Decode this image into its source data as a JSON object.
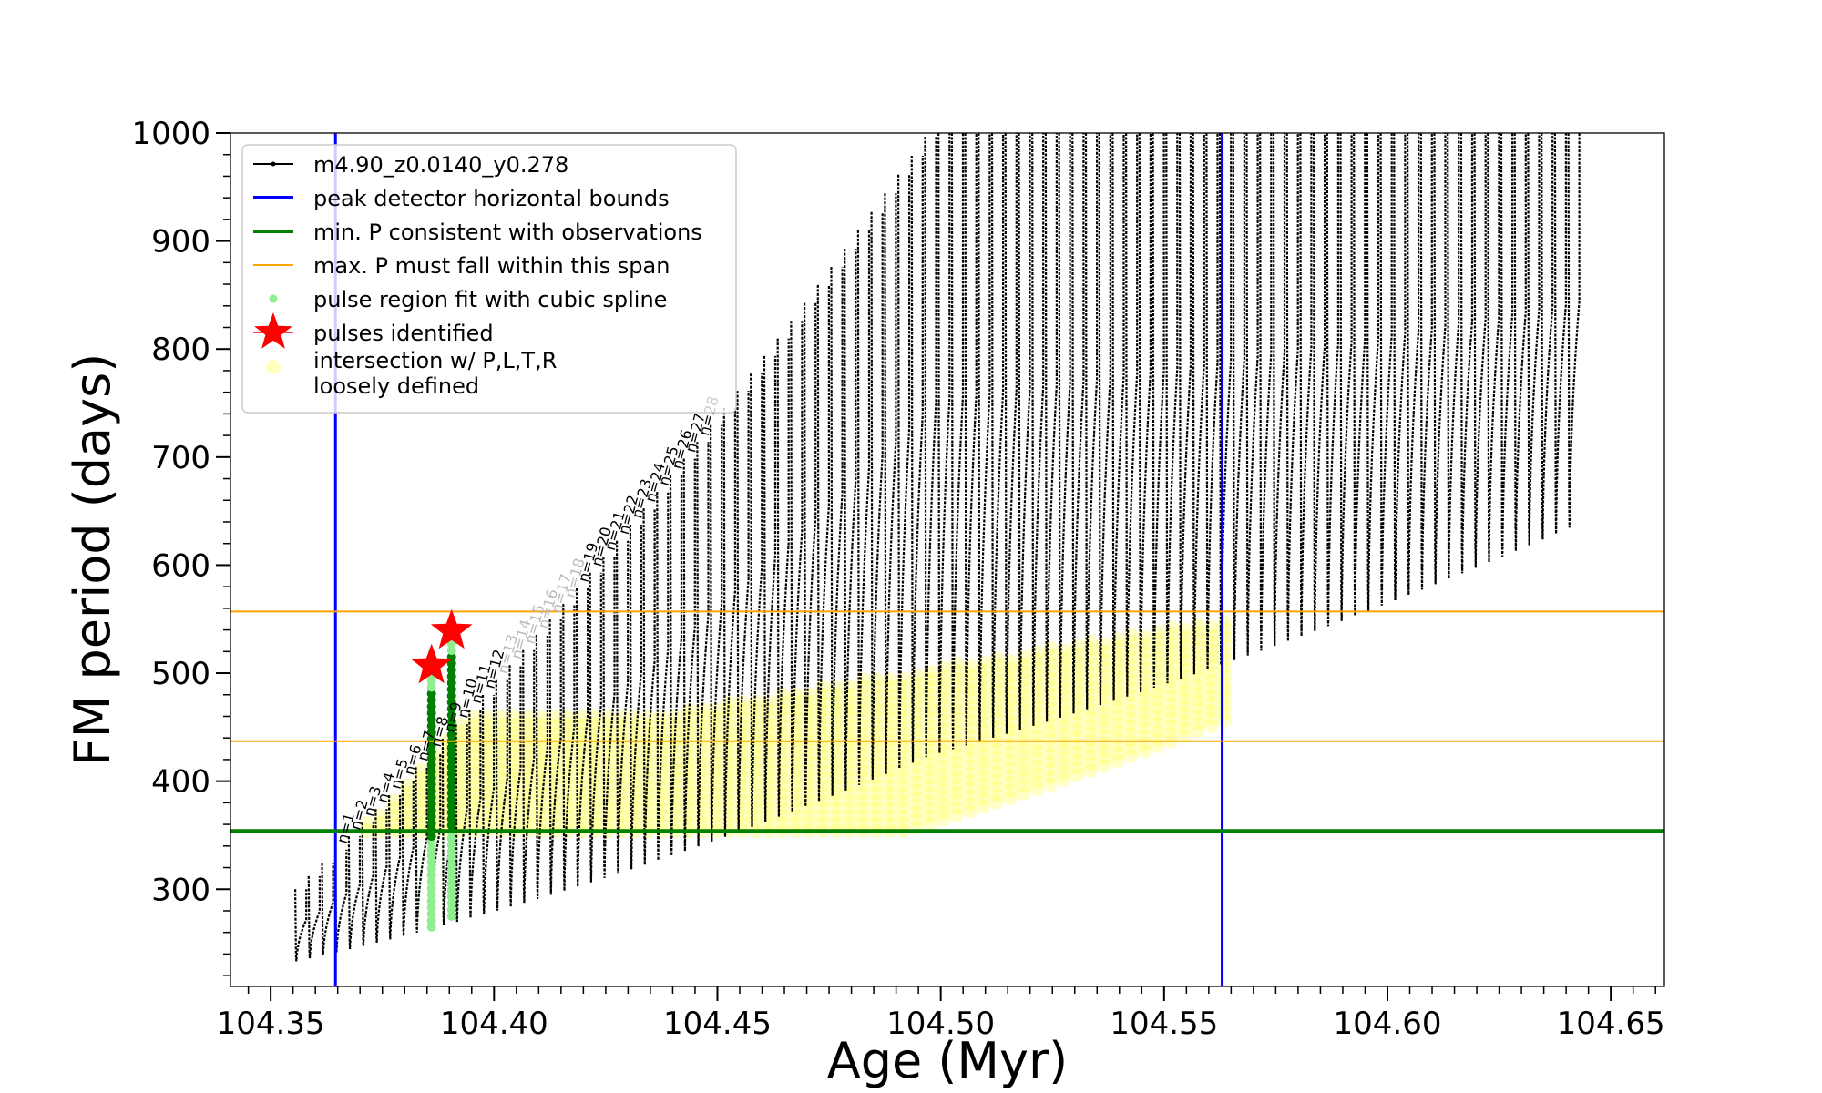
{
  "chart_data": {
    "type": "line",
    "xlabel": "Age (Myr)",
    "ylabel": "FM period (days)",
    "xlim": [
      104.341,
      104.662
    ],
    "ylim": [
      210,
      1000
    ],
    "xticks": [
      "104.35",
      "104.40",
      "104.45",
      "104.50",
      "104.55",
      "104.60",
      "104.65"
    ],
    "yticks": [
      "300",
      "400",
      "500",
      "600",
      "700",
      "800",
      "900",
      "1000"
    ],
    "grid": false,
    "legend_position": "top-left",
    "legend": [
      {
        "label": "m4.90_z0.0140_y0.278",
        "style": "line-marker",
        "color": "#000000"
      },
      {
        "label": "peak detector horizontal bounds",
        "style": "line",
        "color": "#0000ff"
      },
      {
        "label": "min. P consistent with observations",
        "style": "line",
        "color": "#008000"
      },
      {
        "label": "max. P must fall within this span",
        "style": "line",
        "color": "#ffa500"
      },
      {
        "label": "pulse region fit with cubic spline",
        "style": "dot",
        "color": "#90ee90"
      },
      {
        "label": "pulses identified",
        "style": "star",
        "color": "#ff0000"
      },
      {
        "label": "intersection w/ P,L,T,R\nloosely defined",
        "style": "circle",
        "color": "#ffff00"
      }
    ],
    "vertical_lines": [
      {
        "x": 104.3645,
        "color": "#0000ff"
      },
      {
        "x": 104.563,
        "color": "#0000ff"
      }
    ],
    "horizontal_lines": [
      {
        "y": 354,
        "color": "#008000"
      },
      {
        "y": 437,
        "color": "#ffa500"
      },
      {
        "y": 557,
        "color": "#ffa500"
      }
    ],
    "pulse_labels": [
      "n=1",
      "n=2",
      "n=3",
      "n=4",
      "n=5",
      "n=6",
      "n=7",
      "n=8",
      "n=9",
      "n=10",
      "n=11",
      "n=12",
      "n=13",
      "n=14",
      "n=15",
      "n=16",
      "n=17",
      "n=18",
      "n=19",
      "n=20",
      "n=21",
      "n=22",
      "n=23",
      "n=24",
      "n=25",
      "n=26",
      "n=27",
      "n=28"
    ],
    "pulses_identified": [
      {
        "x": 104.386,
        "y": 507
      },
      {
        "x": 104.3905,
        "y": 539
      }
    ],
    "series": [
      {
        "name": "m4.90_z0.0140_y0.278",
        "color": "#000000",
        "pulse_count": 96,
        "first_pulse_age": 104.3555,
        "pulse_spacing": 0.003,
        "trough_start": 225,
        "trough_growth": [
          1,
          1.55
        ],
        "peak_start": 300,
        "peak_growth": [
          1.3,
          1.32
        ]
      }
    ],
    "spline_fits": [
      {
        "x": 104.386,
        "ymin": 265,
        "ymax": 505
      },
      {
        "x": 104.3905,
        "ymin": 275,
        "ymax": 535
      }
    ]
  }
}
